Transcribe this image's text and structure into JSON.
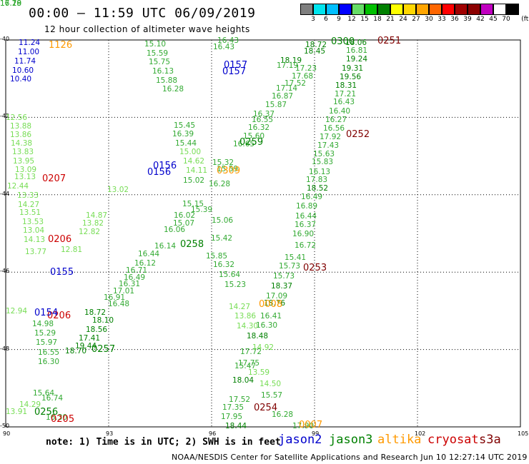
{
  "header": {
    "title": "00:00 – 11:59 UTC 06/09/2019",
    "subtitle": "12 hour collection of altimeter wave heights"
  },
  "legend": {
    "unit": "(ft)",
    "bins": [
      {
        "label": "3",
        "color": "#7f7f7f"
      },
      {
        "label": "6",
        "color": "#00e5ee"
      },
      {
        "label": "9",
        "color": "#00bfff"
      },
      {
        "label": "12",
        "color": "#0000ff"
      },
      {
        "label": "15",
        "color": "#66dd66"
      },
      {
        "label": "18",
        "color": "#00c000"
      },
      {
        "label": "21",
        "color": "#008000"
      },
      {
        "label": "24",
        "color": "#ffff00"
      },
      {
        "label": "27",
        "color": "#ffd700"
      },
      {
        "label": "30",
        "color": "#ffa500"
      },
      {
        "label": "33",
        "color": "#ff6600"
      },
      {
        "label": "36",
        "color": "#ff0000"
      },
      {
        "label": "39",
        "color": "#a00000"
      },
      {
        "label": "42",
        "color": "#8b0000"
      },
      {
        "label": "45",
        "color": "#c000c0"
      },
      {
        "label": "70",
        "color": "#ffffff"
      },
      {
        "label": "",
        "color": "#000000"
      }
    ]
  },
  "axes": {
    "lat_ticks": [
      "-40",
      "-42",
      "-44",
      "-46",
      "-48",
      "-50"
    ],
    "lon_ticks": [
      "90",
      "93",
      "96",
      "99",
      "102",
      "105"
    ]
  },
  "colors": {
    "jason2": "#0000cc",
    "jason3": "#008000",
    "altika": "#ff9900",
    "cryosat": "#cc0000",
    "s3a": "#800000",
    "green_value": "#33aa33",
    "light_green_value": "#77dd55",
    "dark_green_value": "#008000",
    "blue_value": "#0000cc"
  },
  "footer": {
    "note": "note: 1) Time is in UTC; 2) SWH is in feet",
    "satellites": [
      {
        "name": "jason2",
        "color": "#0000cc"
      },
      {
        "name": "jason3",
        "color": "#008000"
      },
      {
        "name": "altika",
        "color": "#ff9900"
      },
      {
        "name": "cryosat",
        "color": "#cc0000"
      },
      {
        "name": "s3a",
        "color": "#800000"
      }
    ],
    "credit": "NOAA/NESDIS Center for Satellite Applications and Research   Jun 10 12:27:14 UTC 2019"
  },
  "pass_times": [
    {
      "text": "1126",
      "color": "#ff9900"
    },
    {
      "text": "0157",
      "color": "#0000cc"
    },
    {
      "text": "0157",
      "color": "#0000cc"
    },
    {
      "text": "0156",
      "color": "#0000cc"
    },
    {
      "text": "0156",
      "color": "#0000cc"
    },
    {
      "text": "0207",
      "color": "#cc0000"
    },
    {
      "text": "0206",
      "color": "#cc0000"
    },
    {
      "text": "0206",
      "color": "#cc0000"
    },
    {
      "text": "0155",
      "color": "#0000cc"
    },
    {
      "text": "0154",
      "color": "#0000cc"
    },
    {
      "text": "0257",
      "color": "#008000"
    },
    {
      "text": "0256",
      "color": "#008000"
    },
    {
      "text": "0205",
      "color": "#cc0000"
    },
    {
      "text": "0258",
      "color": "#008000"
    },
    {
      "text": "0259",
      "color": "#008000"
    },
    {
      "text": "0309",
      "color": "#ff9900"
    },
    {
      "text": "0300",
      "color": "#008000"
    },
    {
      "text": "0251",
      "color": "#800000"
    },
    {
      "text": "0252",
      "color": "#800000"
    },
    {
      "text": "0253",
      "color": "#800000"
    },
    {
      "text": "0254",
      "color": "#800000"
    },
    {
      "text": "0007",
      "color": "#ff9900"
    },
    {
      "text": "0008",
      "color": "#ff9900"
    }
  ],
  "wave_heights": [
    {
      "text": "11.24",
      "color": "#0000cc"
    },
    {
      "text": "11.00",
      "color": "#0000cc"
    },
    {
      "text": "11.74",
      "color": "#0000cc"
    },
    {
      "text": "10.60",
      "color": "#0000cc"
    },
    {
      "text": "10.40",
      "color": "#0000cc"
    },
    {
      "text": "15.10",
      "color": "#33aa33"
    },
    {
      "text": "15.59",
      "color": "#33aa33"
    },
    {
      "text": "15.75",
      "color": "#33aa33"
    },
    {
      "text": "16.13",
      "color": "#33aa33"
    },
    {
      "text": "15.88",
      "color": "#33aa33"
    },
    {
      "text": "16.28",
      "color": "#33aa33"
    },
    {
      "text": "16.43",
      "color": "#33aa33"
    },
    {
      "text": "16.43",
      "color": "#33aa33"
    },
    {
      "text": "15.45",
      "color": "#33aa33"
    },
    {
      "text": "16.39",
      "color": "#33aa33"
    },
    {
      "text": "15.44",
      "color": "#33aa33"
    },
    {
      "text": "15.00",
      "color": "#77dd55"
    },
    {
      "text": "14.62",
      "color": "#77dd55"
    },
    {
      "text": "14.11",
      "color": "#77dd55"
    },
    {
      "text": "12.56",
      "color": "#77dd55"
    },
    {
      "text": "13.88",
      "color": "#77dd55"
    },
    {
      "text": "13.86",
      "color": "#77dd55"
    },
    {
      "text": "14.38",
      "color": "#77dd55"
    },
    {
      "text": "13.83",
      "color": "#77dd55"
    },
    {
      "text": "13.95",
      "color": "#77dd55"
    },
    {
      "text": "13.09",
      "color": "#77dd55"
    },
    {
      "text": "13.13",
      "color": "#77dd55"
    },
    {
      "text": "12.44",
      "color": "#77dd55"
    },
    {
      "text": "13.33",
      "color": "#77dd55"
    },
    {
      "text": "14.27",
      "color": "#77dd55"
    },
    {
      "text": "13.51",
      "color": "#77dd55"
    },
    {
      "text": "13.53",
      "color": "#77dd55"
    },
    {
      "text": "13.04",
      "color": "#77dd55"
    },
    {
      "text": "14.13",
      "color": "#77dd55"
    },
    {
      "text": "13.77",
      "color": "#77dd55"
    },
    {
      "text": "13.02",
      "color": "#77dd55"
    },
    {
      "text": "14.87",
      "color": "#77dd55"
    },
    {
      "text": "13.82",
      "color": "#77dd55"
    },
    {
      "text": "12.82",
      "color": "#77dd55"
    },
    {
      "text": "12.81",
      "color": "#77dd55"
    },
    {
      "text": "12.94",
      "color": "#77dd55"
    },
    {
      "text": "13.91",
      "color": "#77dd55"
    },
    {
      "text": "14.29",
      "color": "#77dd55"
    },
    {
      "text": "14.98",
      "color": "#33aa33"
    },
    {
      "text": "15.29",
      "color": "#33aa33"
    },
    {
      "text": "15.97",
      "color": "#33aa33"
    },
    {
      "text": "16.55",
      "color": "#33aa33"
    },
    {
      "text": "16.30",
      "color": "#33aa33"
    },
    {
      "text": "15.64",
      "color": "#33aa33"
    },
    {
      "text": "16.74",
      "color": "#33aa33"
    },
    {
      "text": "16.30",
      "color": "#33aa33"
    },
    {
      "text": "18.72",
      "color": "#008000"
    },
    {
      "text": "18.10",
      "color": "#008000"
    },
    {
      "text": "18.56",
      "color": "#008000"
    },
    {
      "text": "17.41",
      "color": "#008000"
    },
    {
      "text": "19.44",
      "color": "#008000"
    },
    {
      "text": "18.70",
      "color": "#008000"
    },
    {
      "text": "16.48",
      "color": "#33aa33"
    },
    {
      "text": "16.91",
      "color": "#33aa33"
    },
    {
      "text": "17.01",
      "color": "#33aa33"
    },
    {
      "text": "16.31",
      "color": "#33aa33"
    },
    {
      "text": "16.49",
      "color": "#33aa33"
    },
    {
      "text": "16.71",
      "color": "#33aa33"
    },
    {
      "text": "16.12",
      "color": "#33aa33"
    },
    {
      "text": "16.44",
      "color": "#33aa33"
    },
    {
      "text": "16.14",
      "color": "#33aa33"
    },
    {
      "text": "16.06",
      "color": "#33aa33"
    },
    {
      "text": "16.02",
      "color": "#33aa33"
    },
    {
      "text": "15.07",
      "color": "#33aa33"
    },
    {
      "text": "15.39",
      "color": "#33aa33"
    },
    {
      "text": "15.15",
      "color": "#33aa33"
    },
    {
      "text": "15.02",
      "color": "#33aa33"
    },
    {
      "text": "15.32",
      "color": "#33aa33"
    },
    {
      "text": "16.28",
      "color": "#33aa33"
    },
    {
      "text": "15.59",
      "color": "#33aa33"
    },
    {
      "text": "16.65",
      "color": "#33aa33"
    },
    {
      "text": "15.60",
      "color": "#33aa33"
    },
    {
      "text": "16.32",
      "color": "#33aa33"
    },
    {
      "text": "16.55",
      "color": "#33aa33"
    },
    {
      "text": "16.37",
      "color": "#33aa33"
    },
    {
      "text": "15.87",
      "color": "#33aa33"
    },
    {
      "text": "16.87",
      "color": "#33aa33"
    },
    {
      "text": "17.14",
      "color": "#33aa33"
    },
    {
      "text": "17.52",
      "color": "#33aa33"
    },
    {
      "text": "17.68",
      "color": "#33aa33"
    },
    {
      "text": "18.19",
      "color": "#008000"
    },
    {
      "text": "17.19",
      "color": "#33aa33"
    },
    {
      "text": "17.23",
      "color": "#33aa33"
    },
    {
      "text": "18.45",
      "color": "#008000"
    },
    {
      "text": "18.72",
      "color": "#008000"
    },
    {
      "text": "18.06",
      "color": "#008000"
    },
    {
      "text": "16.81",
      "color": "#33aa33"
    },
    {
      "text": "19.24",
      "color": "#008000"
    },
    {
      "text": "19.31",
      "color": "#008000"
    },
    {
      "text": "19.56",
      "color": "#008000"
    },
    {
      "text": "18.31",
      "color": "#008000"
    },
    {
      "text": "17.21",
      "color": "#33aa33"
    },
    {
      "text": "16.43",
      "color": "#33aa33"
    },
    {
      "text": "16.40",
      "color": "#33aa33"
    },
    {
      "text": "16.27",
      "color": "#33aa33"
    },
    {
      "text": "16.56",
      "color": "#33aa33"
    },
    {
      "text": "17.92",
      "color": "#33aa33"
    },
    {
      "text": "17.43",
      "color": "#33aa33"
    },
    {
      "text": "15.63",
      "color": "#33aa33"
    },
    {
      "text": "15.83",
      "color": "#33aa33"
    },
    {
      "text": "16.13",
      "color": "#33aa33"
    },
    {
      "text": "17.83",
      "color": "#33aa33"
    },
    {
      "text": "18.52",
      "color": "#008000"
    },
    {
      "text": "16.49",
      "color": "#33aa33"
    },
    {
      "text": "16.89",
      "color": "#33aa33"
    },
    {
      "text": "16.44",
      "color": "#33aa33"
    },
    {
      "text": "16.37",
      "color": "#33aa33"
    },
    {
      "text": "16.90",
      "color": "#33aa33"
    },
    {
      "text": "16.72",
      "color": "#33aa33"
    },
    {
      "text": "15.41",
      "color": "#33aa33"
    },
    {
      "text": "15.73",
      "color": "#33aa33"
    },
    {
      "text": "15.73",
      "color": "#33aa33"
    },
    {
      "text": "18.37",
      "color": "#008000"
    },
    {
      "text": "17.09",
      "color": "#33aa33"
    },
    {
      "text": "18.76",
      "color": "#008000"
    },
    {
      "text": "16.41",
      "color": "#33aa33"
    },
    {
      "text": "16.30",
      "color": "#33aa33"
    },
    {
      "text": "18.48",
      "color": "#008000"
    },
    {
      "text": "17.72",
      "color": "#33aa33"
    },
    {
      "text": "17.75",
      "color": "#33aa33"
    },
    {
      "text": "18.04",
      "color": "#008000"
    },
    {
      "text": "17.52",
      "color": "#33aa33"
    },
    {
      "text": "17.35",
      "color": "#33aa33"
    },
    {
      "text": "17.95",
      "color": "#33aa33"
    },
    {
      "text": "18.44",
      "color": "#008000"
    },
    {
      "text": "17.90",
      "color": "#33aa33"
    },
    {
      "text": "16.28",
      "color": "#33aa33"
    },
    {
      "text": "15.57",
      "color": "#33aa33"
    },
    {
      "text": "14.50",
      "color": "#77dd55"
    },
    {
      "text": "13.59",
      "color": "#77dd55"
    },
    {
      "text": "14.92",
      "color": "#77dd55"
    },
    {
      "text": "15.47",
      "color": "#33aa33"
    },
    {
      "text": "15.23",
      "color": "#33aa33"
    },
    {
      "text": "15.64",
      "color": "#33aa33"
    },
    {
      "text": "16.32",
      "color": "#33aa33"
    },
    {
      "text": "15.85",
      "color": "#33aa33"
    },
    {
      "text": "15.42",
      "color": "#33aa33"
    },
    {
      "text": "15.06",
      "color": "#33aa33"
    },
    {
      "text": "14.27",
      "color": "#77dd55"
    },
    {
      "text": "13.86",
      "color": "#77dd55"
    },
    {
      "text": "14.30",
      "color": "#77dd55"
    },
    {
      "text": "16.20",
      "color": "#33aa33"
    },
    {
      "text": "17.19",
      "color": "#33aa33"
    },
    {
      "text": "16.78",
      "color": "#33aa33"
    }
  ]
}
